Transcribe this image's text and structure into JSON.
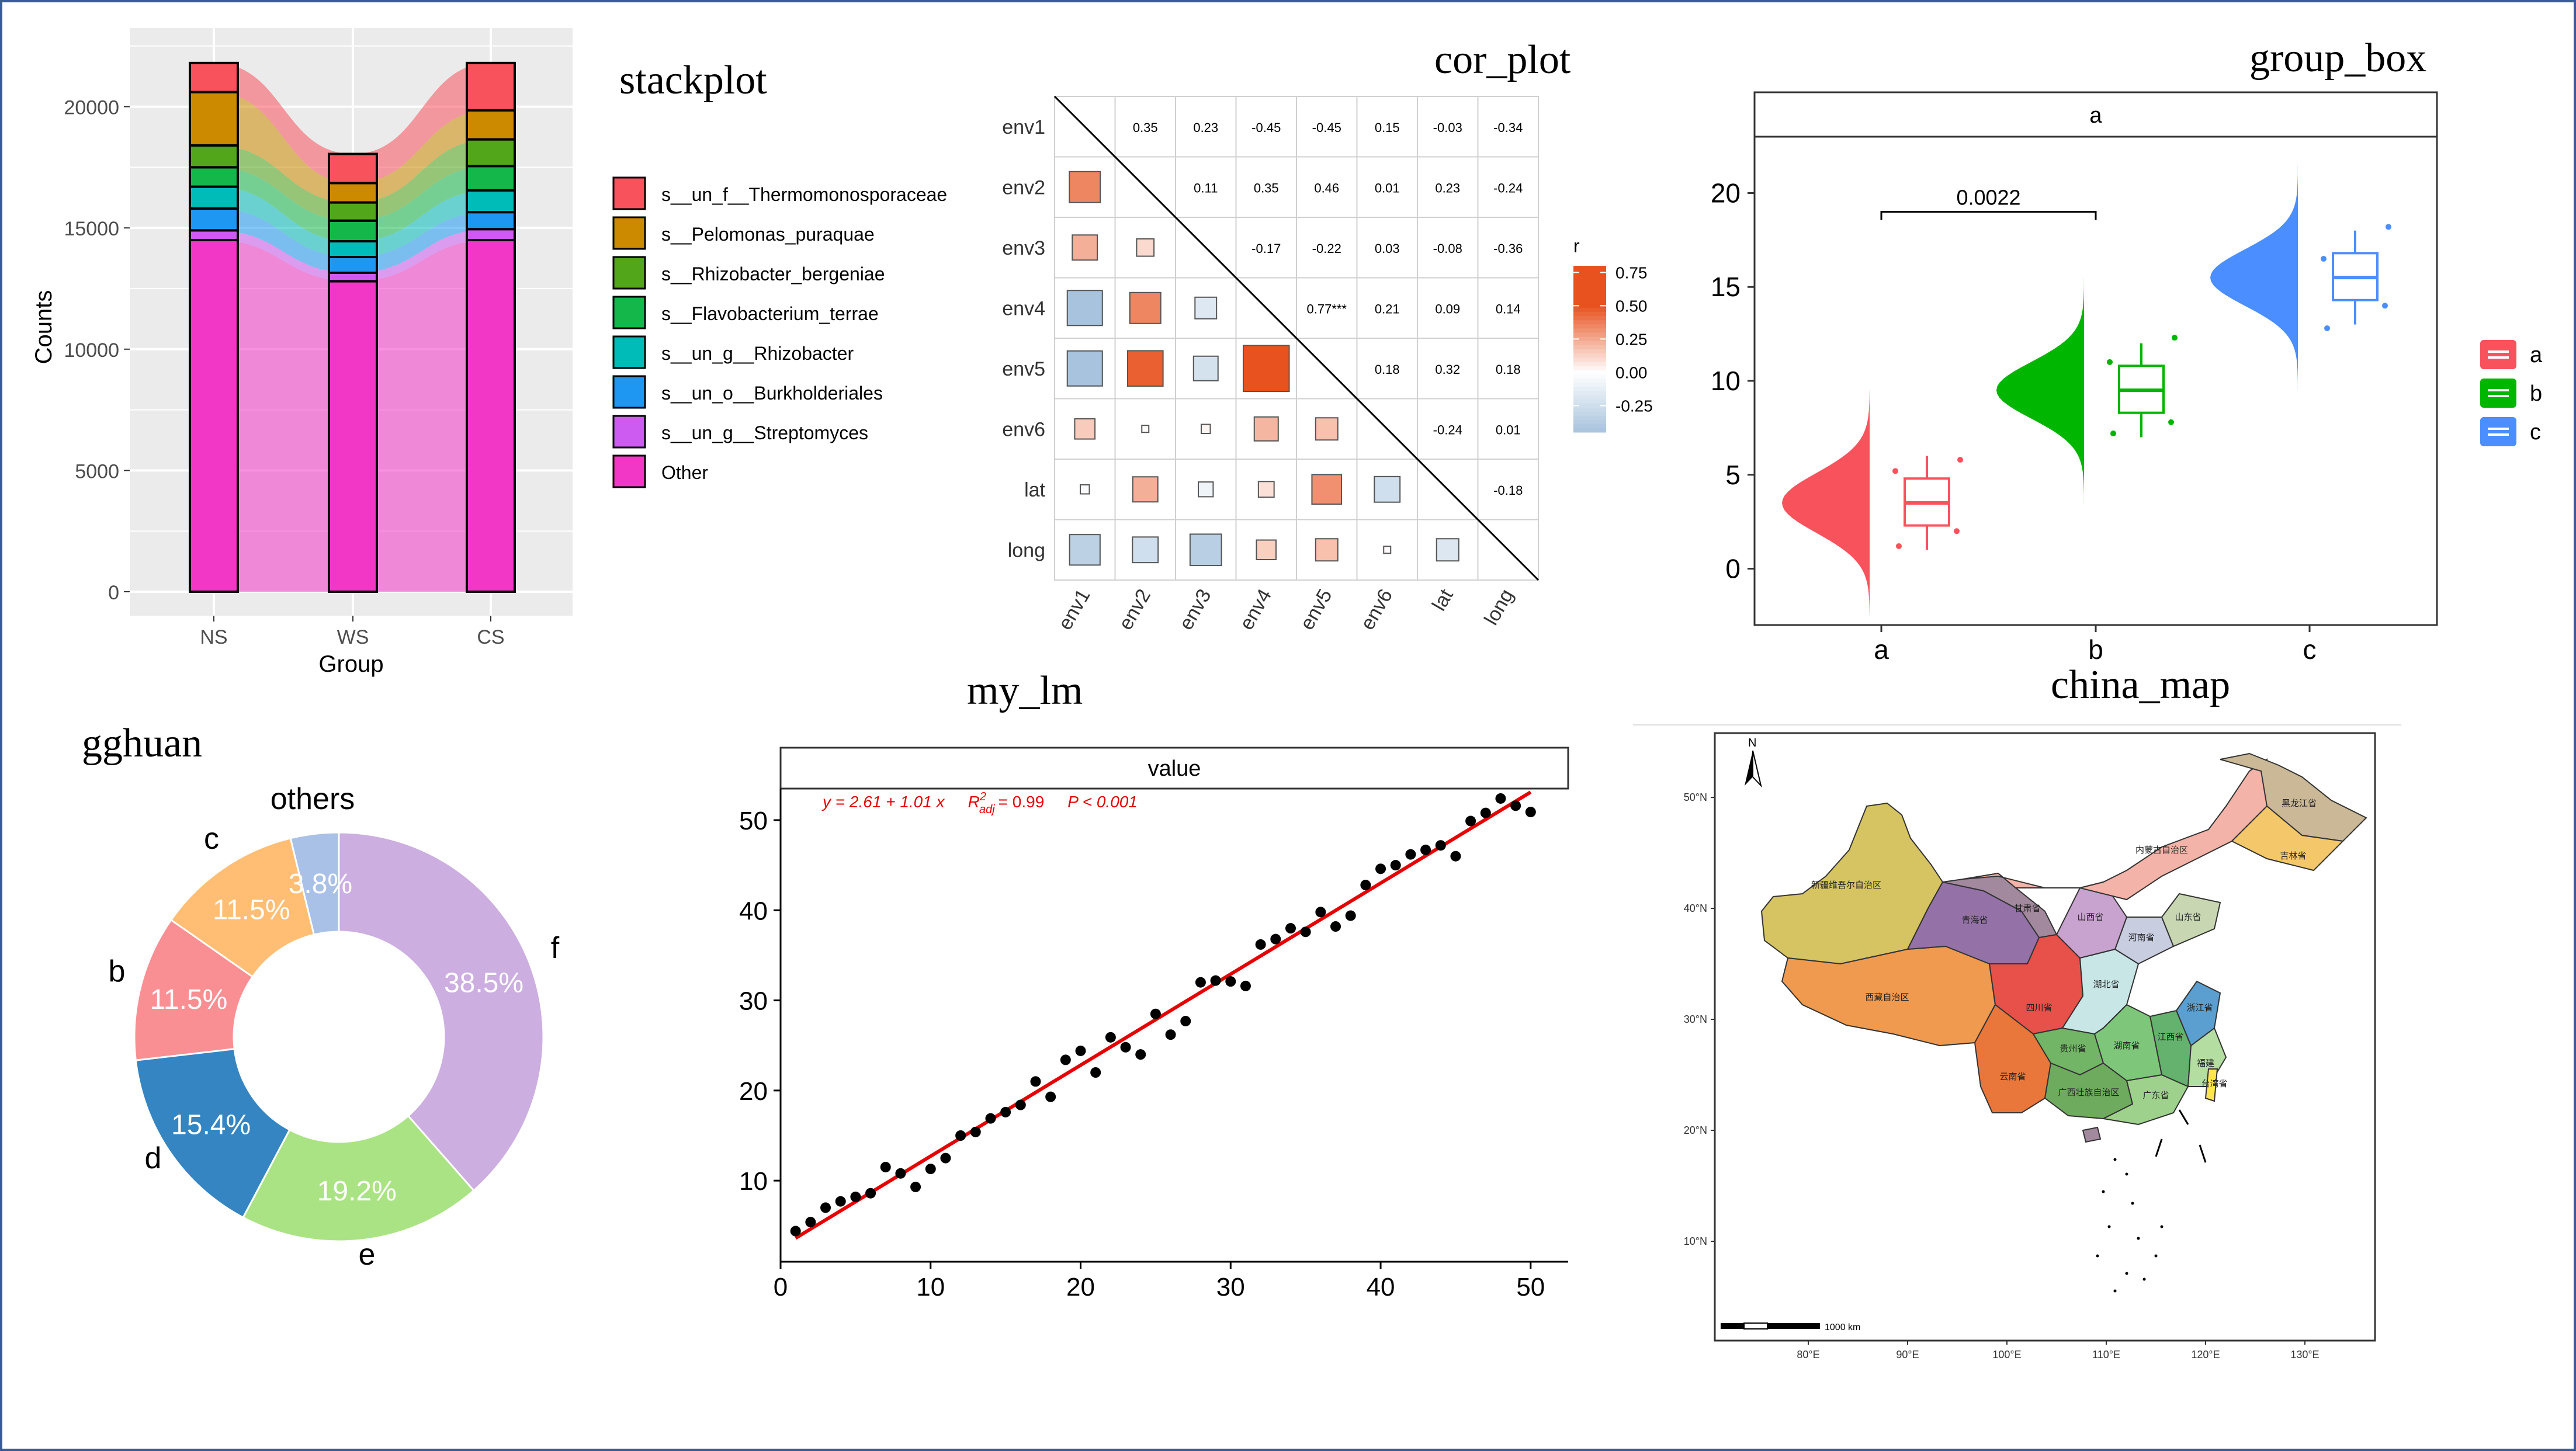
{
  "colors": {
    "border": "#3a5a9c",
    "ggplot_panel": "#ebebeb",
    "ggplot_grid": "#ffffff",
    "axis_text": "#4d4d4d",
    "group_a": "#f8525d",
    "group_b": "#00b600",
    "group_c": "#4a8eff",
    "lm_line": "#e60000",
    "corr_neg": "#9ebcd9",
    "corr_pos": "#e8521f"
  },
  "panels": {
    "stackplot": {
      "title": "stackplot"
    },
    "cor_plot": {
      "title": "cor_plot"
    },
    "group_box": {
      "title": "group_box"
    },
    "gghuan": {
      "title": "gghuan"
    },
    "my_lm": {
      "title": "my_lm"
    },
    "china_map": {
      "title": "china_map"
    }
  },
  "chart_data": [
    {
      "id": "stackplot",
      "type": "bar",
      "stacked": true,
      "categories": [
        "NS",
        "WS",
        "CS"
      ],
      "xlabel": "Group",
      "ylabel": "Counts",
      "ylim": [
        0,
        23000
      ],
      "yticks": [
        0,
        5000,
        10000,
        15000,
        20000
      ],
      "ytick_labels": [
        "0",
        "5000",
        "10000",
        "15000",
        "20000"
      ],
      "grid": true,
      "legend_position": "right",
      "series": [
        {
          "name": "Other",
          "color": "#f237c6",
          "values": [
            14500,
            12800,
            14500
          ]
        },
        {
          "name": "s__un_g__Streptomyces",
          "color": "#cd5bf2",
          "values": [
            400,
            350,
            450
          ]
        },
        {
          "name": "s__un_o__Burkholderiales",
          "color": "#1e97f2",
          "values": [
            900,
            650,
            700
          ]
        },
        {
          "name": "s__un_g__Rhizobacter",
          "color": "#00bcb9",
          "values": [
            900,
            650,
            900
          ]
        },
        {
          "name": "s__Flavobacterium_terrae",
          "color": "#14b84a",
          "values": [
            800,
            850,
            1000
          ]
        },
        {
          "name": "s__Rhizobacter_bergeniae",
          "color": "#52a61a",
          "values": [
            900,
            750,
            1100
          ]
        },
        {
          "name": "s__Pelomonas_puraquae",
          "color": "#cc8a00",
          "values": [
            2200,
            800,
            1200
          ]
        },
        {
          "name": "s__un_f__Thermomonosporaceae",
          "color": "#f8525d",
          "values": [
            1200,
            1200,
            1950
          ]
        }
      ],
      "legend_order": [
        "s__un_f__Thermomonosporaceae",
        "s__Pelomonas_puraquae",
        "s__Rhizobacter_bergeniae",
        "s__Flavobacterium_terrae",
        "s__un_g__Rhizobacter",
        "s__un_o__Burkholderiales",
        "s__un_g__Streptomyces",
        "Other"
      ]
    },
    {
      "id": "cor_plot",
      "type": "heatmap",
      "variables": [
        "env1",
        "env2",
        "env3",
        "env4",
        "env5",
        "env6",
        "lat",
        "long"
      ],
      "upper_labels": [
        [
          "",
          "0.35",
          "0.23",
          "-0.45",
          "-0.45",
          "0.15",
          "-0.03",
          "-0.34"
        ],
        [
          "",
          "",
          "0.11",
          "0.35",
          "0.46",
          "0.01",
          "0.23",
          "-0.24"
        ],
        [
          "",
          "",
          "",
          "-0.17",
          "-0.22",
          "0.03",
          "-0.08",
          "-0.36"
        ],
        [
          "",
          "",
          "",
          "",
          "0.77***",
          "0.21",
          "0.09",
          "0.14"
        ],
        [
          "",
          "",
          "",
          "",
          "",
          "0.18",
          "0.32",
          "0.18"
        ],
        [
          "",
          "",
          "",
          "",
          "",
          "",
          "-0.24",
          "0.01"
        ],
        [
          "",
          "",
          "",
          "",
          "",
          "",
          "",
          "-0.18"
        ],
        [
          "",
          "",
          "",
          "",
          "",
          "",
          "",
          ""
        ]
      ],
      "r": [
        [
          1,
          0.35,
          0.23,
          -0.45,
          -0.45,
          0.15,
          -0.03,
          -0.34
        ],
        [
          0.35,
          1,
          0.11,
          0.35,
          0.46,
          0.01,
          0.23,
          -0.24
        ],
        [
          0.23,
          0.11,
          1,
          -0.17,
          -0.22,
          0.03,
          -0.08,
          -0.36
        ],
        [
          -0.45,
          0.35,
          -0.17,
          1,
          0.77,
          0.21,
          0.09,
          0.14
        ],
        [
          -0.45,
          0.46,
          -0.22,
          0.77,
          1,
          0.18,
          0.32,
          0.18
        ],
        [
          0.15,
          0.01,
          0.03,
          0.21,
          0.18,
          1,
          -0.24,
          0.01
        ],
        [
          -0.03,
          0.23,
          -0.08,
          0.09,
          0.32,
          -0.24,
          1,
          -0.18
        ],
        [
          -0.34,
          -0.24,
          -0.36,
          0.14,
          0.18,
          0.01,
          -0.18,
          1
        ]
      ],
      "legend_title": "r",
      "legend_ticks": [
        "0.75",
        "0.50",
        "0.25",
        "0.00",
        "-0.25"
      ],
      "legend_values": [
        0.75,
        0.5,
        0.25,
        0.0,
        -0.25
      ],
      "legend_range": [
        -0.45,
        0.8
      ]
    },
    {
      "id": "group_box",
      "type": "box",
      "facet_label": "a",
      "categories": [
        "a",
        "b",
        "c"
      ],
      "ylim": [
        -3,
        23
      ],
      "yticks": [
        0,
        5,
        10,
        15,
        20
      ],
      "ytick_labels": [
        "0",
        "5",
        "10",
        "15",
        "20"
      ],
      "boxes": [
        {
          "group": "a",
          "min": 1.0,
          "q1": 2.3,
          "median": 3.5,
          "q3": 4.8,
          "max": 6.0,
          "points": [
            1.2,
            2.0,
            5.2,
            5.8
          ]
        },
        {
          "group": "b",
          "min": 7.0,
          "q1": 8.3,
          "median": 9.5,
          "q3": 10.8,
          "max": 12.0,
          "points": [
            7.2,
            7.8,
            11.0,
            12.3
          ]
        },
        {
          "group": "c",
          "min": 13.0,
          "q1": 14.3,
          "median": 15.5,
          "q3": 16.8,
          "max": 18.0,
          "points": [
            12.8,
            14.0,
            16.5,
            18.2
          ]
        }
      ],
      "density": [
        {
          "group": "a",
          "mean": 3.5,
          "sd": 1.6,
          "min": -2.5,
          "max": 9.5
        },
        {
          "group": "b",
          "mean": 9.5,
          "sd": 1.5,
          "min": 3.5,
          "max": 15.5
        },
        {
          "group": "c",
          "mean": 15.5,
          "sd": 1.5,
          "min": 9.5,
          "max": 21.5
        }
      ],
      "annotation": {
        "from": "a",
        "to": "b",
        "y": 19.0,
        "label": "0.0022"
      },
      "legend_labels": [
        "a",
        "b",
        "c"
      ],
      "legend_position": "right"
    },
    {
      "id": "gghuan",
      "type": "pie",
      "donut": true,
      "slices": [
        {
          "label": "f",
          "value": 38.5,
          "text": "38.5%",
          "color": "#ccaee0"
        },
        {
          "label": "e",
          "value": 19.2,
          "text": "19.2%",
          "color": "#aae384"
        },
        {
          "label": "d",
          "value": 15.4,
          "text": "15.4%",
          "color": "#3485c2"
        },
        {
          "label": "b",
          "value": 11.5,
          "text": "11.5%",
          "color": "#fa8f93"
        },
        {
          "label": "c",
          "value": 11.5,
          "text": "11.5%",
          "color": "#ffbe73"
        },
        {
          "label": "others",
          "value": 3.8,
          "text": "3.8%",
          "color": "#a9c1e6"
        }
      ]
    },
    {
      "id": "my_lm",
      "type": "scatter",
      "facet_label": "value",
      "x": [
        1,
        2,
        3,
        4,
        5,
        6,
        7,
        8,
        9,
        10,
        11,
        12,
        13,
        14,
        15,
        16,
        17,
        18,
        19,
        20,
        21,
        22,
        23,
        24,
        25,
        26,
        27,
        28,
        29,
        30,
        31,
        32,
        33,
        34,
        35,
        36,
        37,
        38,
        39,
        40,
        41,
        42,
        43,
        44,
        45,
        46,
        47,
        48,
        49,
        50
      ],
      "y": [
        4.4,
        5.4,
        7.0,
        7.7,
        8.2,
        8.6,
        11.5,
        10.8,
        9.3,
        11.3,
        12.5,
        15.0,
        15.4,
        16.9,
        17.6,
        18.4,
        21.0,
        19.3,
        23.4,
        24.4,
        22.0,
        25.9,
        24.8,
        24.0,
        28.5,
        26.2,
        27.7,
        32.0,
        32.2,
        32.1,
        31.6,
        36.2,
        36.8,
        38.0,
        37.6,
        39.8,
        38.2,
        39.4,
        42.8,
        44.6,
        45.0,
        46.2,
        46.7,
        47.2,
        46.0,
        49.9,
        50.8,
        52.4,
        51.6,
        50.9
      ],
      "fit": {
        "intercept": 2.61,
        "slope": 1.01
      },
      "equation": {
        "y_part": "y = 2.61 + 1.01 x",
        "r2_symbol": "R",
        "r2_sup": "2",
        "r2_sub": "adj",
        "r2_value": "= 0.99",
        "p_text": "P < 0.001"
      },
      "xlim": [
        0,
        52.5
      ],
      "ylim": [
        1,
        53.5
      ],
      "xticks": [
        0,
        10,
        20,
        30,
        40,
        50
      ],
      "xtick_labels": [
        "0",
        "10",
        "20",
        "30",
        "40",
        "50"
      ],
      "yticks": [
        10,
        20,
        30,
        40,
        50
      ],
      "ytick_labels": [
        "10",
        "20",
        "30",
        "40",
        "50"
      ]
    },
    {
      "id": "china_map",
      "type": "map",
      "north_label": "N",
      "lat_labels": [
        "50°N",
        "40°N",
        "30°N",
        "20°N",
        "10°N"
      ],
      "lon_labels": [
        "80°E",
        "90°E",
        "100°E",
        "110°E",
        "120°E",
        "130°E"
      ],
      "scale_label": "1000 km",
      "regions": [
        {
          "label": "新疆维吾尔自治区",
          "color": "#d6c462"
        },
        {
          "label": "西藏自治区",
          "color": "#f09a50"
        },
        {
          "label": "青海省",
          "color": "#9472a8"
        },
        {
          "label": "内蒙古自治区",
          "color": "#f4b3a8"
        },
        {
          "label": "黑龙江省",
          "color": "#cbb896"
        },
        {
          "label": "吉林省",
          "color": "#f4c86a"
        },
        {
          "label": "四川省",
          "color": "#e8504a"
        },
        {
          "label": "云南省",
          "color": "#e9773b"
        },
        {
          "label": "甘肃省",
          "color": "#a3899d"
        },
        {
          "label": "山西省",
          "color": "#c9a3cf"
        },
        {
          "label": "山东省",
          "color": "#c8d7b2"
        },
        {
          "label": "河南省",
          "color": "#c8cde0"
        },
        {
          "label": "湖北省",
          "color": "#c8e6e6"
        },
        {
          "label": "湖南省",
          "color": "#7ec77a"
        },
        {
          "label": "江西省",
          "color": "#64b26e"
        },
        {
          "label": "贵州省",
          "color": "#72b566"
        },
        {
          "label": "广西壮族自治区",
          "color": "#6fab5f"
        },
        {
          "label": "广东省",
          "color": "#9ed28c"
        },
        {
          "label": "福建",
          "color": "#b4dda1"
        },
        {
          "label": "浙江省",
          "color": "#5a9fd0"
        },
        {
          "label": "台湾省",
          "color": "#ffe64a"
        }
      ]
    }
  ]
}
